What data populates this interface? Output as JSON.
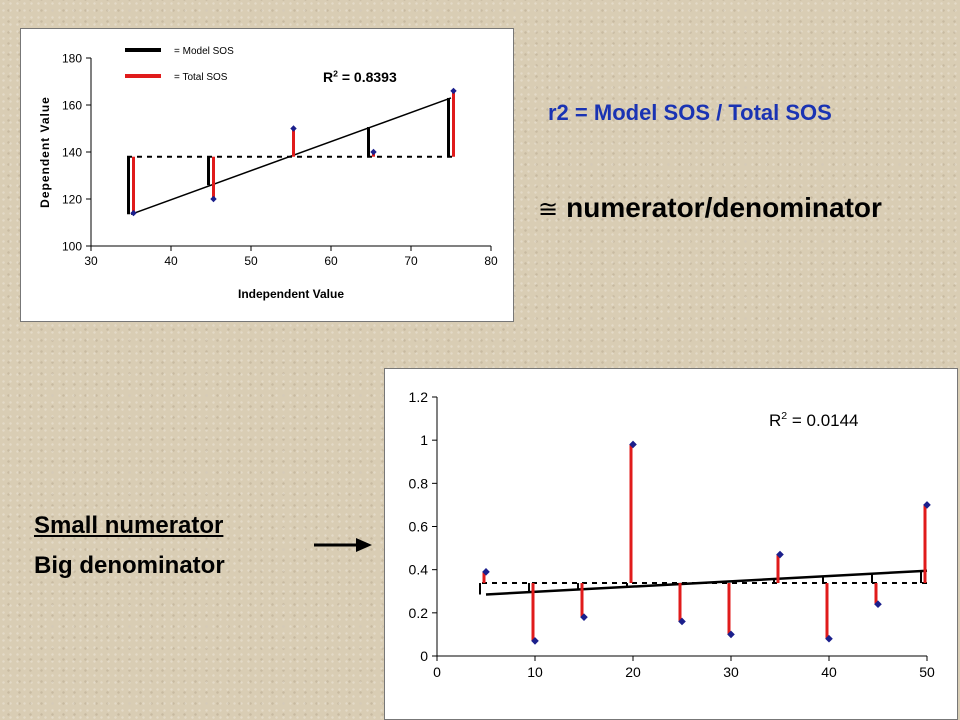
{
  "labels": {
    "formula": "r2 = Model SOS / Total SOS",
    "approx_symbol": "≅",
    "approx_text": "numerator/denominator",
    "line1": "Small numerator",
    "line2": "Big denominator"
  },
  "colors": {
    "model": "#000000",
    "total": "#e01b1b",
    "point": "#1b1f8c",
    "formula": "#1a33b3"
  },
  "chart_data": [
    {
      "type": "scatter",
      "xlabel": "Independent Value",
      "ylabel": "Dependent Value",
      "xlim": [
        30,
        80
      ],
      "ylim": [
        100,
        180
      ],
      "xticks": [
        "30",
        "40",
        "50",
        "60",
        "70",
        "80"
      ],
      "yticks": [
        "100",
        "120",
        "140",
        "160",
        "180"
      ],
      "annotation": "R",
      "annotation_sup": "2",
      "annotation_value": " = 0.8393",
      "legend": [
        {
          "label": "= Model  SOS",
          "color": "#000000"
        },
        {
          "label": "= Total  SOS",
          "color": "#e01b1b"
        }
      ],
      "mean_y": 138,
      "regression": {
        "x": [
          35,
          75
        ],
        "y": [
          113.5,
          163
        ]
      },
      "points": [
        {
          "x": 35,
          "y": 114
        },
        {
          "x": 45,
          "y": 120
        },
        {
          "x": 55,
          "y": 150
        },
        {
          "x": 65,
          "y": 140
        },
        {
          "x": 75,
          "y": 166
        }
      ]
    },
    {
      "type": "scatter",
      "xlim": [
        0,
        50
      ],
      "ylim": [
        0,
        1.2
      ],
      "xticks": [
        "0",
        "10",
        "20",
        "30",
        "40",
        "50"
      ],
      "yticks": [
        "0",
        "0.2",
        "0.4",
        "0.6",
        "0.8",
        "1",
        "1.2"
      ],
      "annotation": "R",
      "annotation_sup": "2",
      "annotation_value": " = 0.0144",
      "mean_y": 0.338,
      "regression": {
        "x": [
          5,
          50
        ],
        "y": [
          0.285,
          0.395
        ]
      },
      "points": [
        {
          "x": 5,
          "y": 0.39
        },
        {
          "x": 10,
          "y": 0.07
        },
        {
          "x": 15,
          "y": 0.18
        },
        {
          "x": 20,
          "y": 0.98
        },
        {
          "x": 25,
          "y": 0.16
        },
        {
          "x": 30,
          "y": 0.1
        },
        {
          "x": 35,
          "y": 0.47
        },
        {
          "x": 40,
          "y": 0.08
        },
        {
          "x": 45,
          "y": 0.24
        },
        {
          "x": 50,
          "y": 0.7
        }
      ]
    }
  ]
}
